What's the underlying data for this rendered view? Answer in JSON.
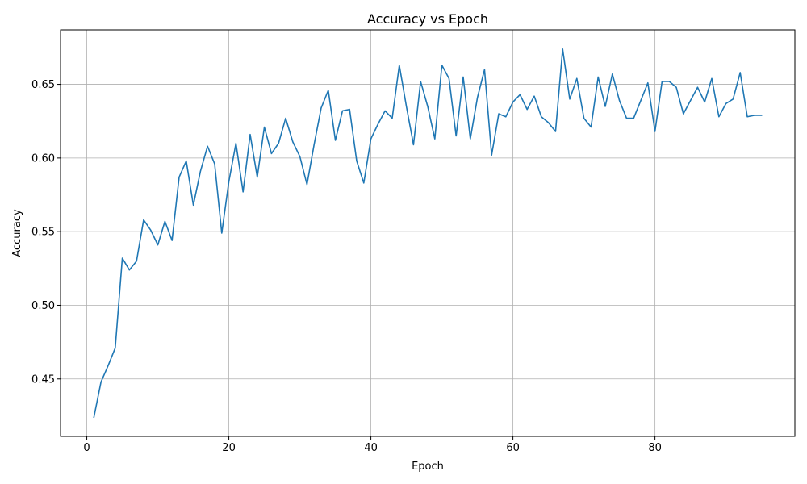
{
  "chart_data": {
    "type": "line",
    "title": "Accuracy vs Epoch",
    "xlabel": "Epoch",
    "ylabel": "Accuracy",
    "xlim": [
      -3.7,
      99.7
    ],
    "ylim": [
      0.411,
      0.687
    ],
    "xticks": [
      0,
      20,
      40,
      60,
      80
    ],
    "yticks": [
      0.45,
      0.5,
      0.55,
      0.6,
      0.65
    ],
    "ytick_labels": [
      "0.45",
      "0.50",
      "0.55",
      "0.60",
      "0.65"
    ],
    "grid": true,
    "series": [
      {
        "color": "#1f77b4",
        "x": [
          1,
          2,
          3,
          4,
          5,
          6,
          7,
          8,
          9,
          10,
          11,
          12,
          13,
          14,
          15,
          16,
          17,
          18,
          19,
          20,
          21,
          22,
          23,
          24,
          25,
          26,
          27,
          28,
          29,
          30,
          31,
          32,
          33,
          34,
          35,
          36,
          37,
          38,
          39,
          40,
          41,
          42,
          43,
          44,
          45,
          46,
          47,
          48,
          49,
          50,
          51,
          52,
          53,
          54,
          55,
          56,
          57,
          58,
          59,
          60,
          61,
          62,
          63,
          64,
          65,
          66,
          67,
          68,
          69,
          70,
          71,
          72,
          73,
          74,
          75,
          76,
          77,
          78,
          79,
          80,
          81,
          82,
          83,
          84,
          85,
          86,
          87,
          88,
          89,
          90,
          91,
          92,
          93,
          94,
          95
        ],
        "y": [
          0.424,
          0.448,
          0.459,
          0.471,
          0.532,
          0.524,
          0.53,
          0.558,
          0.551,
          0.541,
          0.557,
          0.544,
          0.587,
          0.598,
          0.568,
          0.591,
          0.608,
          0.596,
          0.549,
          0.584,
          0.61,
          0.577,
          0.616,
          0.587,
          0.621,
          0.603,
          0.61,
          0.627,
          0.611,
          0.601,
          0.582,
          0.609,
          0.634,
          0.646,
          0.612,
          0.632,
          0.633,
          0.598,
          0.583,
          0.613,
          0.623,
          0.632,
          0.627,
          0.663,
          0.635,
          0.609,
          0.652,
          0.635,
          0.613,
          0.663,
          0.654,
          0.615,
          0.655,
          0.613,
          0.641,
          0.66,
          0.602,
          0.63,
          0.628,
          0.638,
          0.643,
          0.633,
          0.642,
          0.628,
          0.624,
          0.618,
          0.674,
          0.64,
          0.654,
          0.627,
          0.621,
          0.655,
          0.635,
          0.657,
          0.639,
          0.627,
          0.627,
          0.639,
          0.651,
          0.618,
          0.652,
          0.652,
          0.648,
          0.63,
          0.639,
          0.648,
          0.638,
          0.654,
          0.628,
          0.637,
          0.64,
          0.658,
          0.628,
          0.629,
          0.629
        ]
      }
    ]
  }
}
